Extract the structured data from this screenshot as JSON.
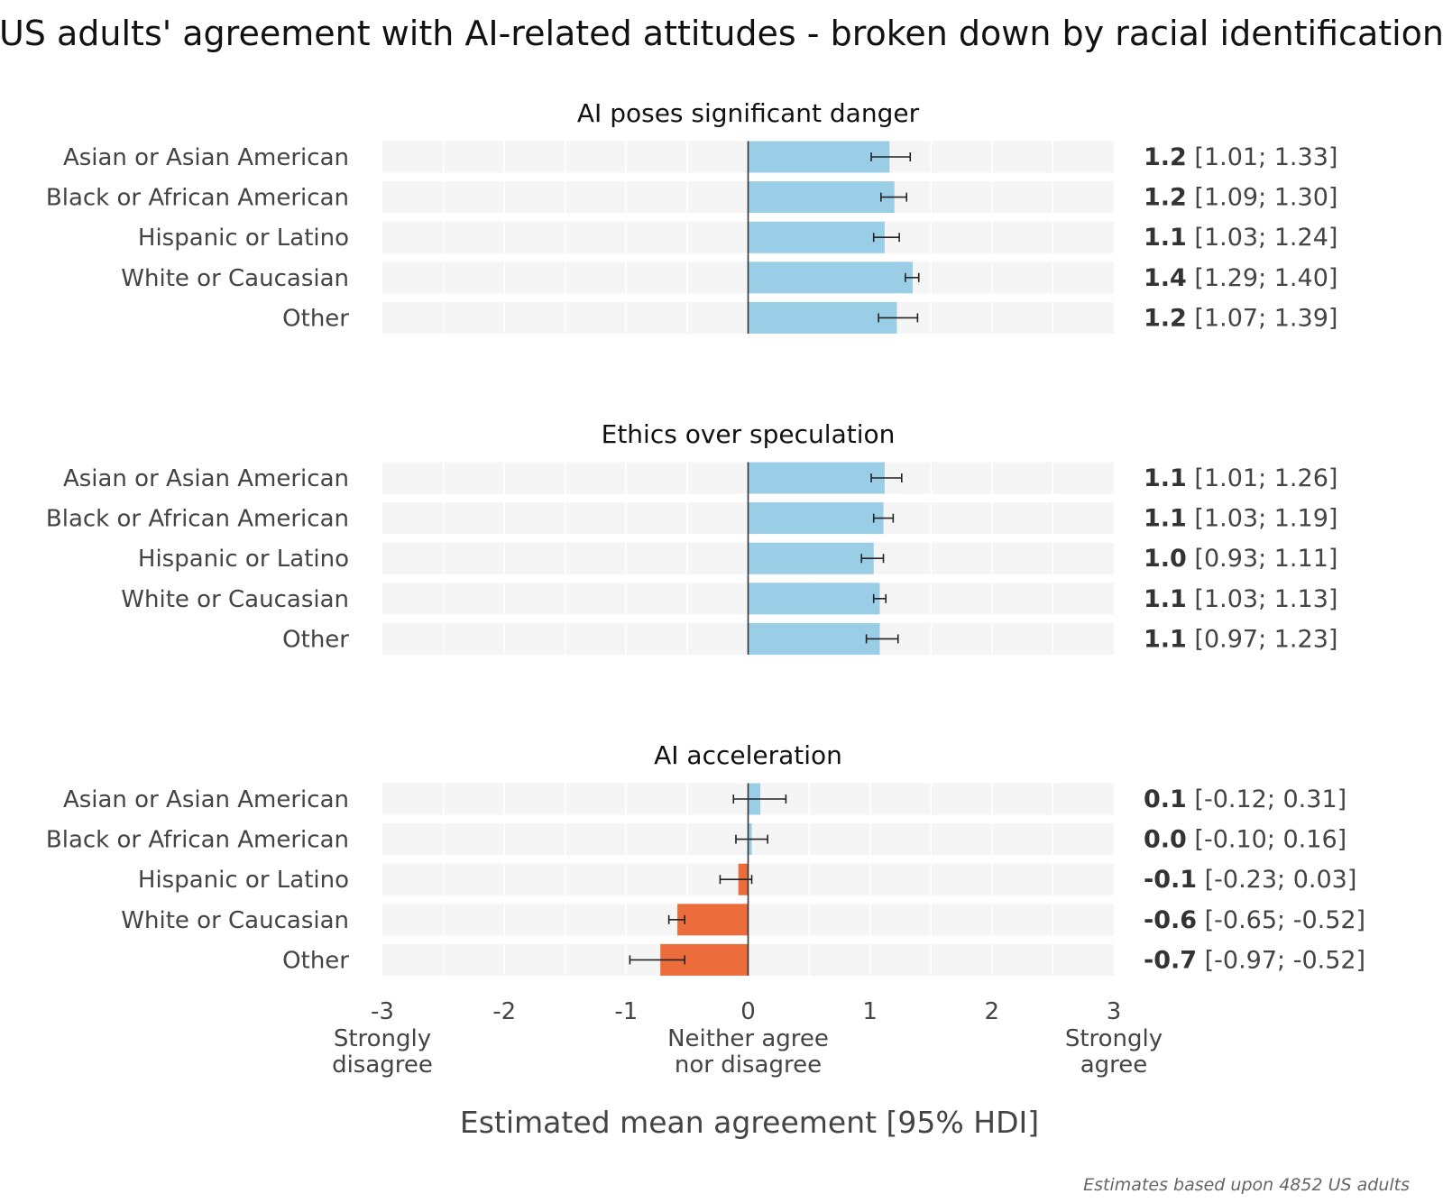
{
  "chart_data": {
    "type": "bar",
    "orientation": "horizontal",
    "title": "US adults' agreement with AI-related attitudes - broken down by racial identification",
    "xlabel": "Estimated mean agreement [95% HDI]",
    "xlim": [
      -3,
      3
    ],
    "xticks": [
      -3,
      -2,
      -1,
      0,
      1,
      2,
      3
    ],
    "xtick_labels": [
      "-3",
      "-2",
      "-1",
      "0",
      "1",
      "2",
      "3"
    ],
    "anchor_labels": [
      {
        "x": -3,
        "lines": [
          "Strongly",
          "disagree"
        ]
      },
      {
        "x": 0,
        "lines": [
          "Neither agree",
          "nor disagree"
        ]
      },
      {
        "x": 3,
        "lines": [
          "Strongly",
          "agree"
        ]
      }
    ],
    "footnote": "Estimates based upon 4852 US adults",
    "colors": {
      "positive": "#9acde6",
      "negative": "#ec6d3b",
      "track": "#f5f5f5",
      "grid": "#ffffff",
      "zero_line": "#333333",
      "error_bar": "#222222"
    },
    "categories": [
      "Asian or Asian American",
      "Black or African American",
      "Hispanic or Latino",
      "White or Caucasian",
      "Other"
    ],
    "panels": [
      {
        "title": "AI poses significant danger",
        "rows": [
          {
            "category": "Asian or Asian American",
            "value": 1.16,
            "label": "1.2",
            "lo": 1.01,
            "hi": 1.33,
            "ci": "[1.01; 1.33]"
          },
          {
            "category": "Black or African American",
            "value": 1.2,
            "label": "1.2",
            "lo": 1.09,
            "hi": 1.3,
            "ci": "[1.09; 1.30]"
          },
          {
            "category": "Hispanic or Latino",
            "value": 1.12,
            "label": "1.1",
            "lo": 1.03,
            "hi": 1.24,
            "ci": "[1.03; 1.24]"
          },
          {
            "category": "White or Caucasian",
            "value": 1.35,
            "label": "1.4",
            "lo": 1.29,
            "hi": 1.4,
            "ci": "[1.29; 1.40]"
          },
          {
            "category": "Other",
            "value": 1.22,
            "label": "1.2",
            "lo": 1.07,
            "hi": 1.39,
            "ci": "[1.07; 1.39]"
          }
        ]
      },
      {
        "title": "Ethics over speculation",
        "rows": [
          {
            "category": "Asian or Asian American",
            "value": 1.12,
            "label": "1.1",
            "lo": 1.01,
            "hi": 1.26,
            "ci": "[1.01; 1.26]"
          },
          {
            "category": "Black or African American",
            "value": 1.11,
            "label": "1.1",
            "lo": 1.03,
            "hi": 1.19,
            "ci": "[1.03; 1.19]"
          },
          {
            "category": "Hispanic or Latino",
            "value": 1.03,
            "label": "1.0",
            "lo": 0.93,
            "hi": 1.11,
            "ci": "[0.93; 1.11]"
          },
          {
            "category": "White or Caucasian",
            "value": 1.08,
            "label": "1.1",
            "lo": 1.03,
            "hi": 1.13,
            "ci": "[1.03; 1.13]"
          },
          {
            "category": "Other",
            "value": 1.08,
            "label": "1.1",
            "lo": 0.97,
            "hi": 1.23,
            "ci": "[0.97; 1.23]"
          }
        ]
      },
      {
        "title": "AI acceleration",
        "rows": [
          {
            "category": "Asian or Asian American",
            "value": 0.1,
            "label": "0.1",
            "lo": -0.12,
            "hi": 0.31,
            "ci": "[-0.12; 0.31]"
          },
          {
            "category": "Black or African American",
            "value": 0.03,
            "label": "0.0",
            "lo": -0.1,
            "hi": 0.16,
            "ci": "[-0.10; 0.16]"
          },
          {
            "category": "Hispanic or Latino",
            "value": -0.08,
            "label": "-0.1",
            "lo": -0.23,
            "hi": 0.03,
            "ci": "[-0.23; 0.03]"
          },
          {
            "category": "White or Caucasian",
            "value": -0.58,
            "label": "-0.6",
            "lo": -0.65,
            "hi": -0.52,
            "ci": "[-0.65; -0.52]"
          },
          {
            "category": "Other",
            "value": -0.72,
            "label": "-0.7",
            "lo": -0.97,
            "hi": -0.52,
            "ci": "[-0.97; -0.52]"
          }
        ]
      }
    ]
  }
}
